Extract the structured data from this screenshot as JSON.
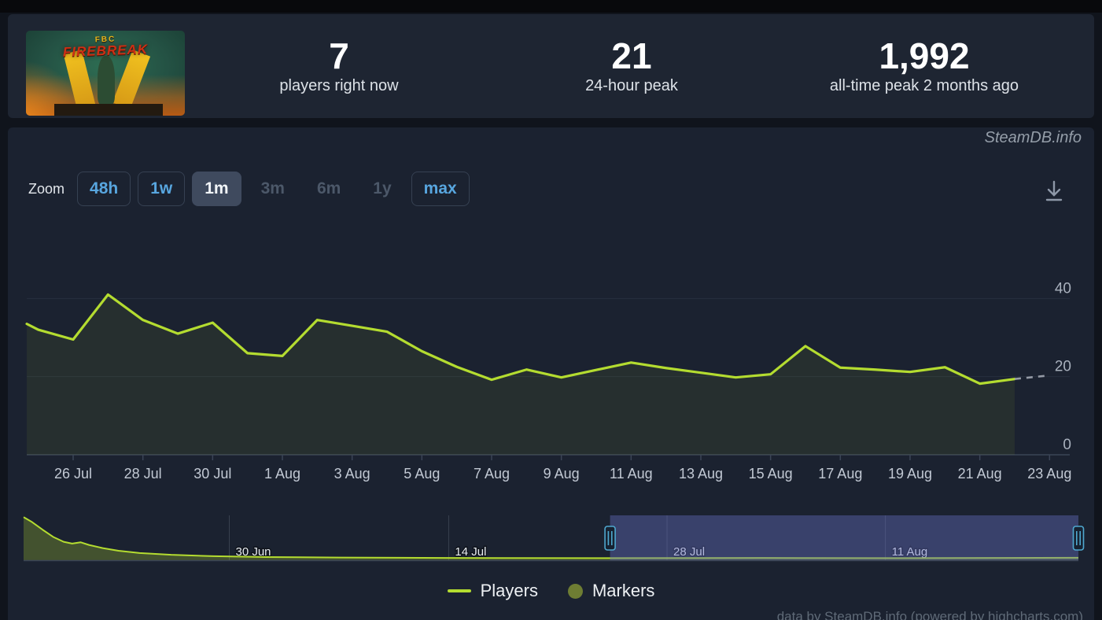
{
  "page": {
    "watermark": "SteamDB.info",
    "credits": "data by SteamDB.info (powered by highcharts.com)"
  },
  "stats": {
    "thumbnail": {
      "small_title": "FBC",
      "title": "FIREBREAK"
    },
    "items": [
      {
        "value": "7",
        "label": "players right now"
      },
      {
        "value": "21",
        "label": "24-hour peak"
      },
      {
        "value": "1,992",
        "label": "all-time peak 2 months ago"
      }
    ]
  },
  "toolbar": {
    "zoom_label": "Zoom",
    "buttons": [
      {
        "label": "48h",
        "state": "normal"
      },
      {
        "label": "1w",
        "state": "normal"
      },
      {
        "label": "1m",
        "state": "selected"
      },
      {
        "label": "3m",
        "state": "disabled"
      },
      {
        "label": "6m",
        "state": "disabled"
      },
      {
        "label": "1y",
        "state": "disabled"
      },
      {
        "label": "max",
        "state": "normal"
      }
    ],
    "download_icon": "download-icon"
  },
  "chart_data": {
    "type": "line",
    "title": "",
    "xlabel": "",
    "ylabel": "",
    "ylim": [
      0,
      59
    ],
    "yticks": [
      0,
      20,
      40
    ],
    "grid": "horizontal only",
    "legend_position": "bottom center",
    "x_tick_labels": [
      "26 Jul",
      "28 Jul",
      "30 Jul",
      "1 Aug",
      "3 Aug",
      "5 Aug",
      "7 Aug",
      "9 Aug",
      "11 Aug",
      "13 Aug",
      "15 Aug",
      "17 Aug",
      "19 Aug",
      "21 Aug",
      "23 Aug"
    ],
    "series": [
      {
        "name": "Players",
        "color": "#b4dc30",
        "points": [
          {
            "date": "24 Jul",
            "d": -0.33,
            "v": 33.5
          },
          {
            "date": "25 Jul",
            "d": 0,
            "v": 32
          },
          {
            "date": "26 Jul",
            "d": 1,
            "v": 29.5
          },
          {
            "date": "27 Jul",
            "d": 2,
            "v": 41
          },
          {
            "date": "28 Jul",
            "d": 3,
            "v": 34.5
          },
          {
            "date": "29 Jul",
            "d": 4,
            "v": 31
          },
          {
            "date": "30 Jul",
            "d": 5,
            "v": 33.8
          },
          {
            "date": "31 Jul",
            "d": 6,
            "v": 26
          },
          {
            "date": "1 Aug",
            "d": 7,
            "v": 25.3
          },
          {
            "date": "2 Aug",
            "d": 8,
            "v": 34.5
          },
          {
            "date": "3 Aug",
            "d": 9,
            "v": 33
          },
          {
            "date": "4 Aug",
            "d": 10,
            "v": 31.5
          },
          {
            "date": "5 Aug",
            "d": 11,
            "v": 26.5
          },
          {
            "date": "6 Aug",
            "d": 12,
            "v": 22.5
          },
          {
            "date": "7 Aug",
            "d": 13,
            "v": 19.2
          },
          {
            "date": "8 Aug",
            "d": 14,
            "v": 21.8
          },
          {
            "date": "9 Aug",
            "d": 15,
            "v": 19.8
          },
          {
            "date": "10 Aug",
            "d": 16,
            "v": 21.7
          },
          {
            "date": "11 Aug",
            "d": 17,
            "v": 23.6
          },
          {
            "date": "12 Aug",
            "d": 18,
            "v": 22.2
          },
          {
            "date": "13 Aug",
            "d": 19,
            "v": 21
          },
          {
            "date": "14 Aug",
            "d": 20,
            "v": 19.8
          },
          {
            "date": "15 Aug",
            "d": 21,
            "v": 20.6
          },
          {
            "date": "16 Aug",
            "d": 22,
            "v": 27.8
          },
          {
            "date": "17 Aug",
            "d": 23,
            "v": 22.3
          },
          {
            "date": "18 Aug",
            "d": 24,
            "v": 21.8
          },
          {
            "date": "19 Aug",
            "d": 25,
            "v": 21.2
          },
          {
            "date": "20 Aug",
            "d": 26,
            "v": 22.4
          },
          {
            "date": "21 Aug",
            "d": 27,
            "v": 18.2
          },
          {
            "date": "22 Aug",
            "d": 28,
            "v": 19.4
          }
        ]
      }
    ],
    "projection": {
      "name": "Players (in-progress day, dashed)",
      "color": "#949aa5",
      "points": [
        {
          "date": "22 Aug",
          "d": 28,
          "v": 19.4
        },
        {
          "date": "23 Aug",
          "d": 29,
          "v": 20.3
        }
      ]
    }
  },
  "navigator": {
    "labels": [
      {
        "text": "30 Jun",
        "t": 0.195
      },
      {
        "text": "14 Jul",
        "t": 0.403
      },
      {
        "text": "28 Jul",
        "t": 0.61
      },
      {
        "text": "11 Aug",
        "t": 0.817
      }
    ],
    "selection": {
      "from": 0.556,
      "to": 1.0
    },
    "handle_icon": "navigator-handle-grip-icon",
    "series": {
      "name": "Players (full history)",
      "points": [
        {
          "t": 0,
          "f": 0.96
        },
        {
          "t": 0.008,
          "f": 0.85
        },
        {
          "t": 0.018,
          "f": 0.68
        },
        {
          "t": 0.028,
          "f": 0.52
        },
        {
          "t": 0.038,
          "f": 0.41
        },
        {
          "t": 0.046,
          "f": 0.37
        },
        {
          "t": 0.054,
          "f": 0.4
        },
        {
          "t": 0.062,
          "f": 0.34
        },
        {
          "t": 0.075,
          "f": 0.27
        },
        {
          "t": 0.09,
          "f": 0.21
        },
        {
          "t": 0.11,
          "f": 0.16
        },
        {
          "t": 0.14,
          "f": 0.12
        },
        {
          "t": 0.18,
          "f": 0.09
        },
        {
          "t": 0.23,
          "f": 0.07
        },
        {
          "t": 0.3,
          "f": 0.06
        },
        {
          "t": 0.4,
          "f": 0.05
        },
        {
          "t": 0.55,
          "f": 0.045
        },
        {
          "t": 0.7,
          "f": 0.05
        },
        {
          "t": 0.82,
          "f": 0.045
        },
        {
          "t": 0.92,
          "f": 0.05
        },
        {
          "t": 1,
          "f": 0.055
        }
      ]
    }
  },
  "legend": {
    "items": [
      {
        "label": "Players",
        "swatch": "line",
        "color": "#b4dc30"
      },
      {
        "label": "Markers",
        "swatch": "circle",
        "color": "#6e7d33"
      }
    ]
  },
  "colors": {
    "accent_blue": "#58a6df",
    "line": "#b4dc30",
    "line_fill": "rgba(180,220,48,0.07)",
    "nav_fill": "rgba(180,220,48,0.26)",
    "nav_overlay": "rgba(100,110,190,0.42)",
    "handle_border": "#4fa8cf",
    "grid": "#272f3e",
    "axis": "#3b4456",
    "panel": "#1b2230"
  }
}
